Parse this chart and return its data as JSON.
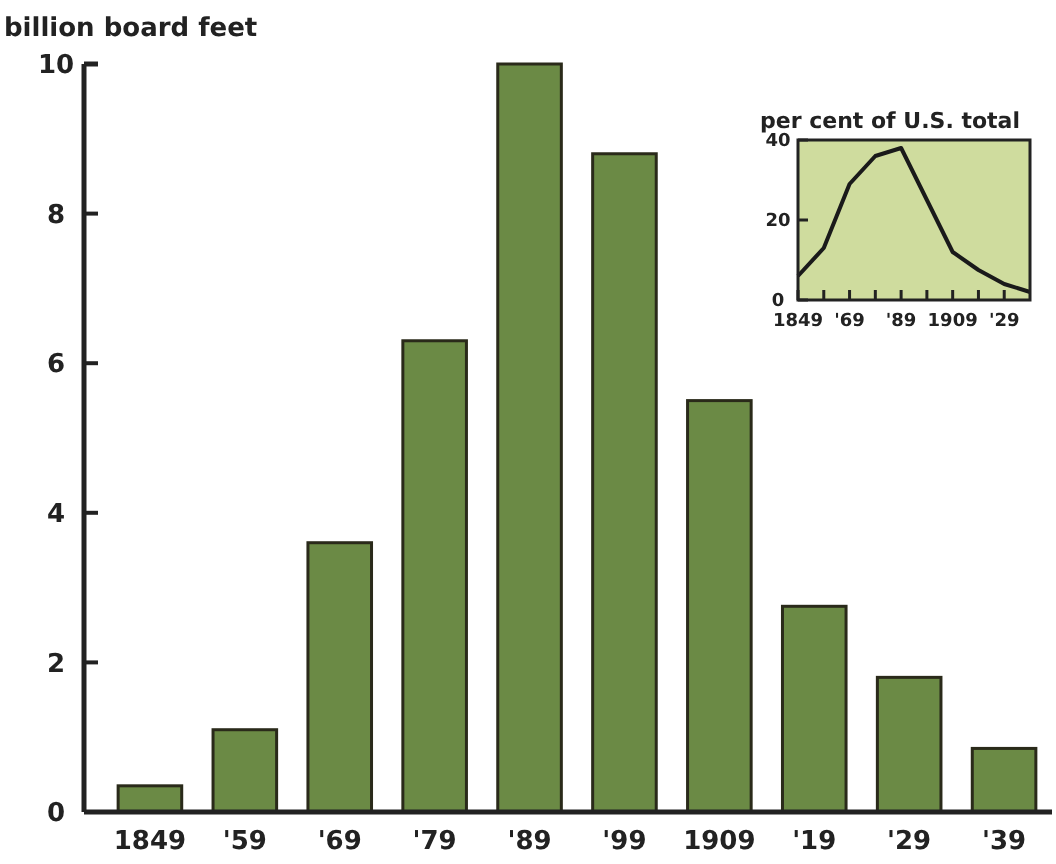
{
  "chart_data": [
    {
      "type": "bar",
      "ylabel": "billion board feet",
      "categories": [
        "1849",
        "'59",
        "'69",
        "'79",
        "'89",
        "'99",
        "1909",
        "'19",
        "'29",
        "'39"
      ],
      "values": [
        0.35,
        1.1,
        3.6,
        6.3,
        10.0,
        8.8,
        5.5,
        2.75,
        1.8,
        0.85
      ],
      "color": "#6b8a45",
      "ylim": [
        0,
        10
      ],
      "yticks": [
        0,
        2,
        4,
        6,
        8,
        10
      ],
      "grid": false
    },
    {
      "type": "line",
      "ylabel": "per cent of U.S. total",
      "x": [
        1849,
        1859,
        1869,
        1879,
        1889,
        1899,
        1909,
        1919,
        1929,
        1939
      ],
      "values": [
        6,
        13,
        29,
        36,
        38,
        25,
        12,
        7.5,
        4,
        2
      ],
      "color": "#1a1a1a",
      "xlim": [
        1849,
        1939
      ],
      "ylim": [
        0,
        40
      ],
      "yticks": [
        0,
        20,
        40
      ],
      "xticks": [
        {
          "value": 1849,
          "label": "1849"
        },
        {
          "value": 1859,
          "label": null
        },
        {
          "value": 1869,
          "label": "'69"
        },
        {
          "value": 1879,
          "label": null
        },
        {
          "value": 1889,
          "label": "'89"
        },
        {
          "value": 1899,
          "label": null
        },
        {
          "value": 1909,
          "label": "1909"
        },
        {
          "value": 1919,
          "label": null
        },
        {
          "value": 1929,
          "label": "'29"
        }
      ],
      "grid": false,
      "marker": "none",
      "line_style": "solid"
    }
  ]
}
